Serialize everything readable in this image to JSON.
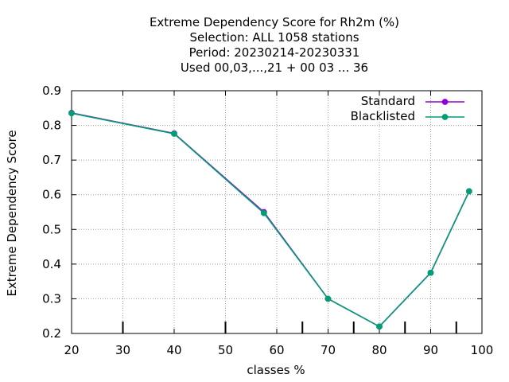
{
  "chart_data": {
    "type": "line",
    "title_lines": [
      "Extreme Dependency Score  for Rh2m (%)",
      "Selection: ALL   1058 stations",
      "Period: 20230214-20230331",
      "Used  00,03,...,21  + 00 03 ... 36"
    ],
    "xlabel": "classes %",
    "ylabel": "Extreme Dependency Score",
    "xlim": [
      20,
      100
    ],
    "ylim": [
      0.2,
      0.9
    ],
    "xticks": [
      20,
      30,
      40,
      50,
      60,
      70,
      80,
      90,
      100
    ],
    "yticks": [
      0.2,
      0.3,
      0.4,
      0.5,
      0.6,
      0.7,
      0.8,
      0.9
    ],
    "xtick_labels": [
      "20",
      "30",
      "40",
      "50",
      "60",
      "70",
      "80",
      "90",
      "100"
    ],
    "ytick_labels": [
      "0.2",
      "0.3",
      "0.4",
      "0.5",
      "0.6",
      "0.7",
      "0.8",
      "0.9"
    ],
    "class_ticks": [
      30,
      50,
      65,
      75,
      85,
      95
    ],
    "grid": true,
    "legend_position": "top-right",
    "series": [
      {
        "name": "Standard",
        "color": "#9400d3",
        "x": [
          20,
          40,
          57.5,
          70,
          80,
          90,
          97.5
        ],
        "y": [
          0.836,
          0.777,
          0.55,
          0.3,
          0.22,
          0.375,
          0.61
        ]
      },
      {
        "name": "Blacklisted",
        "color": "#009e73",
        "x": [
          20,
          40,
          57.5,
          70,
          80,
          90,
          97.5
        ],
        "y": [
          0.835,
          0.776,
          0.547,
          0.3,
          0.22,
          0.375,
          0.61
        ]
      }
    ]
  }
}
